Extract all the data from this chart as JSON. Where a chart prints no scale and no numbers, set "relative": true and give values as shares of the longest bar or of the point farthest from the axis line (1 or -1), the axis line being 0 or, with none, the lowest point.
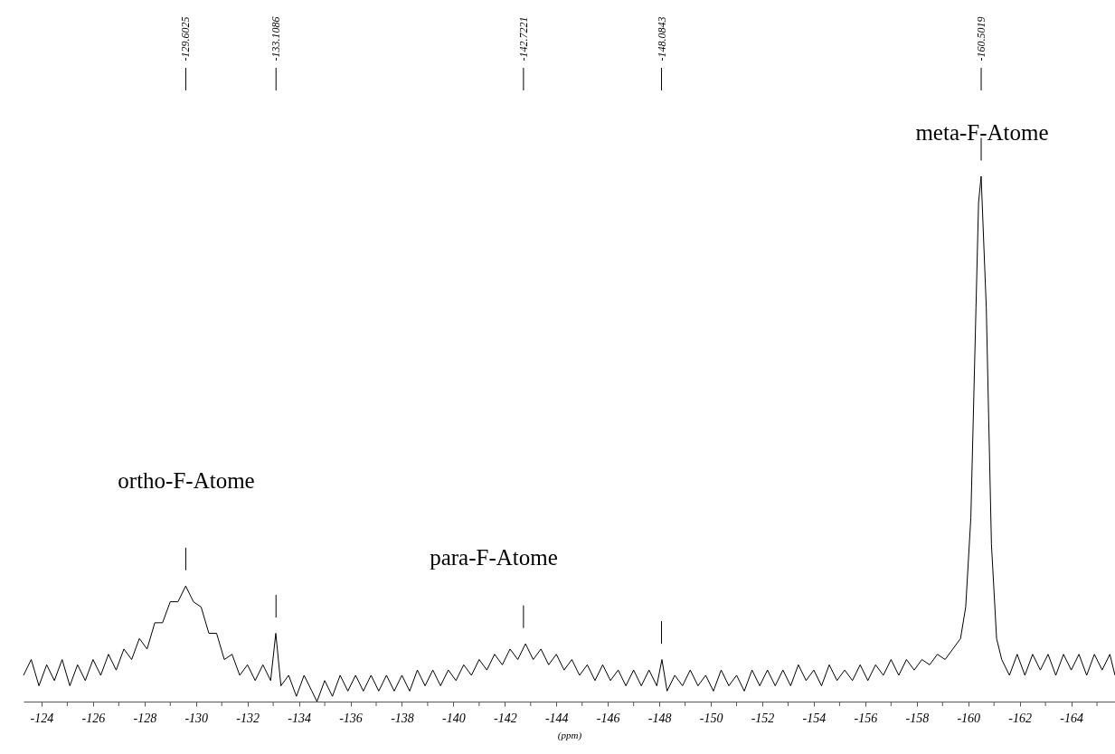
{
  "chart_data": {
    "type": "line",
    "relative": true,
    "xlabel": "(ppm)",
    "xlim": [
      -123.3,
      -165.7
    ],
    "xticks": [
      -124,
      {
        "value": -125,
        "label": null
      },
      -126,
      {
        "value": -127,
        "label": null
      },
      -128,
      {
        "value": -129,
        "label": null
      },
      -130,
      {
        "value": -131,
        "label": null
      },
      -132,
      {
        "value": -133,
        "label": null
      },
      -134,
      {
        "value": -135,
        "label": null
      },
      -136,
      {
        "value": -137,
        "label": null
      },
      -138,
      {
        "value": -139,
        "label": null
      },
      -140,
      {
        "value": -141,
        "label": null
      },
      -142,
      {
        "value": -143,
        "label": null
      },
      -144,
      {
        "value": -145,
        "label": null
      },
      -146,
      {
        "value": -147,
        "label": null
      },
      -148,
      {
        "value": -149,
        "label": null
      },
      -150,
      {
        "value": -151,
        "label": null
      },
      -152,
      {
        "value": -153,
        "label": null
      },
      -154,
      {
        "value": -155,
        "label": null
      },
      -156,
      {
        "value": -157,
        "label": null
      },
      -158,
      {
        "value": -159,
        "label": null
      },
      -160,
      {
        "value": -161,
        "label": null
      },
      -162,
      {
        "value": -163,
        "label": null
      },
      -164,
      {
        "value": -165,
        "label": null
      }
    ],
    "x": [
      -123.3,
      -123.6,
      -123.9,
      -124.2,
      -124.5,
      -124.8,
      -125.1,
      -125.4,
      -125.7,
      -126.0,
      -126.3,
      -126.6,
      -126.9,
      -127.2,
      -127.5,
      -127.8,
      -128.1,
      -128.4,
      -128.7,
      -129.0,
      -129.3,
      -129.6,
      -129.9,
      -130.2,
      -130.5,
      -130.8,
      -131.1,
      -131.4,
      -131.7,
      -132.0,
      -132.3,
      -132.6,
      -132.9,
      -133.1,
      -133.3,
      -133.6,
      -133.9,
      -134.2,
      -134.5,
      -134.7,
      -135.0,
      -135.3,
      -135.6,
      -135.9,
      -136.2,
      -136.5,
      -136.8,
      -137.1,
      -137.4,
      -137.7,
      -138.0,
      -138.3,
      -138.6,
      -138.9,
      -139.2,
      -139.5,
      -139.8,
      -140.1,
      -140.4,
      -140.7,
      -141.0,
      -141.3,
      -141.6,
      -141.9,
      -142.2,
      -142.5,
      -142.8,
      -143.1,
      -143.4,
      -143.7,
      -144.0,
      -144.3,
      -144.6,
      -144.9,
      -145.2,
      -145.5,
      -145.8,
      -146.1,
      -146.4,
      -146.7,
      -147.0,
      -147.3,
      -147.6,
      -147.9,
      -148.1,
      -148.3,
      -148.6,
      -148.9,
      -149.2,
      -149.5,
      -149.8,
      -150.1,
      -150.4,
      -150.7,
      -151.0,
      -151.3,
      -151.6,
      -151.9,
      -152.2,
      -152.5,
      -152.8,
      -153.1,
      -153.4,
      -153.7,
      -154.0,
      -154.3,
      -154.6,
      -154.9,
      -155.2,
      -155.5,
      -155.8,
      -156.1,
      -156.4,
      -156.7,
      -157.0,
      -157.3,
      -157.6,
      -157.9,
      -158.2,
      -158.5,
      -158.8,
      -159.1,
      -159.4,
      -159.7,
      -159.9,
      -160.1,
      -160.3,
      -160.4,
      -160.5,
      -160.7,
      -160.9,
      -161.1,
      -161.3,
      -161.6,
      -161.9,
      -162.2,
      -162.5,
      -162.8,
      -163.1,
      -163.4,
      -163.7,
      -164.0,
      -164.3,
      -164.6,
      -164.9,
      -165.2,
      -165.5,
      -165.7
    ],
    "series": [
      {
        "color": "#000000",
        "values": [
          0.05,
          0.08,
          0.03,
          0.07,
          0.04,
          0.08,
          0.03,
          0.07,
          0.04,
          0.08,
          0.05,
          0.09,
          0.06,
          0.1,
          0.08,
          0.12,
          0.1,
          0.15,
          0.15,
          0.19,
          0.19,
          0.22,
          0.19,
          0.18,
          0.13,
          0.13,
          0.08,
          0.09,
          0.05,
          0.07,
          0.04,
          0.07,
          0.04,
          0.13,
          0.03,
          0.05,
          0.01,
          0.05,
          0.02,
          0.0,
          0.04,
          0.01,
          0.05,
          0.02,
          0.05,
          0.02,
          0.05,
          0.02,
          0.05,
          0.02,
          0.05,
          0.02,
          0.06,
          0.03,
          0.06,
          0.03,
          0.06,
          0.04,
          0.07,
          0.05,
          0.08,
          0.06,
          0.09,
          0.07,
          0.1,
          0.08,
          0.11,
          0.08,
          0.1,
          0.07,
          0.09,
          0.06,
          0.08,
          0.05,
          0.07,
          0.04,
          0.07,
          0.04,
          0.06,
          0.03,
          0.06,
          0.03,
          0.06,
          0.03,
          0.08,
          0.02,
          0.05,
          0.03,
          0.06,
          0.03,
          0.05,
          0.02,
          0.06,
          0.03,
          0.05,
          0.02,
          0.06,
          0.03,
          0.06,
          0.03,
          0.06,
          0.03,
          0.07,
          0.04,
          0.06,
          0.03,
          0.07,
          0.04,
          0.06,
          0.04,
          0.07,
          0.04,
          0.07,
          0.05,
          0.08,
          0.05,
          0.08,
          0.06,
          0.08,
          0.07,
          0.09,
          0.08,
          0.1,
          0.12,
          0.18,
          0.35,
          0.75,
          0.95,
          1.0,
          0.75,
          0.3,
          0.12,
          0.08,
          0.05,
          0.09,
          0.05,
          0.09,
          0.06,
          0.09,
          0.05,
          0.09,
          0.06,
          0.09,
          0.05,
          0.09,
          0.06,
          0.09,
          0.05
        ]
      }
    ],
    "ref_lines": [
      {
        "axis": "x",
        "value": -129.6025,
        "label": "-129.6025"
      },
      {
        "axis": "x",
        "value": -133.1086,
        "label": "-133.1086"
      },
      {
        "axis": "x",
        "value": -142.7221,
        "label": "-142.7221"
      },
      {
        "axis": "x",
        "value": -148.0843,
        "label": "-148.0843"
      },
      {
        "axis": "x",
        "value": -160.5019,
        "label": "-160.5019"
      }
    ],
    "annotations": [
      "ortho-F-Atome",
      "para-F-Atome",
      "meta-F-Atome"
    ]
  }
}
